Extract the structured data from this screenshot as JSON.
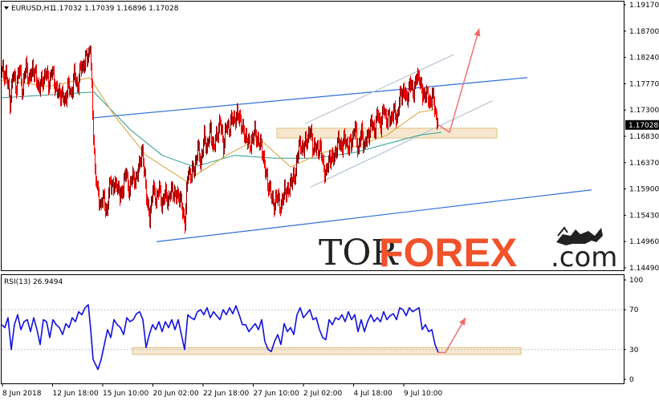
{
  "chart_data": [
    {
      "type": "candlestick",
      "header": {
        "symbol": "EURUSD,H1",
        "ohlc": "1.17032 1.17039 1.16896 1.17028"
      },
      "last_price_label": "1.17028",
      "ylim": [
        1.1449,
        1.1917
      ],
      "y_ticks": [
        "1.19170",
        "1.18700",
        "1.18240",
        "1.17770",
        "1.17300",
        "1.16830",
        "1.16370",
        "1.15900",
        "1.15430",
        "1.14960",
        "1.14490"
      ],
      "x_tick_labels": [
        "8 Jun 2018",
        "12 Jun 18:00",
        "15 Jun 10:00",
        "20 Jun 02:00",
        "22 Jun 18:00",
        "27 Jun 10:00",
        "2 Jul 02:00",
        "4 Jul 18:00",
        "9 Jul 10:00"
      ],
      "price_path": [
        [
          0,
          1.1795
        ],
        [
          5,
          1.1792
        ],
        [
          10,
          1.1745
        ],
        [
          14,
          1.179
        ],
        [
          18,
          1.177
        ],
        [
          22,
          1.18
        ],
        [
          26,
          1.176
        ],
        [
          30,
          1.181
        ],
        [
          34,
          1.1775
        ],
        [
          38,
          1.1805
        ],
        [
          42,
          1.1785
        ],
        [
          46,
          1.177
        ],
        [
          50,
          1.1775
        ],
        [
          54,
          1.1795
        ],
        [
          58,
          1.1775
        ],
        [
          62,
          1.1795
        ],
        [
          66,
          1.1775
        ],
        [
          70,
          1.1755
        ],
        [
          74,
          1.176
        ],
        [
          78,
          1.174
        ],
        [
          82,
          1.1772
        ],
        [
          86,
          1.1755
        ],
        [
          90,
          1.179
        ],
        [
          94,
          1.177
        ],
        [
          98,
          1.18
        ],
        [
          102,
          1.181
        ],
        [
          106,
          1.1818
        ],
        [
          110,
          1.184
        ],
        [
          113,
          1.172
        ],
        [
          116,
          1.1625
        ],
        [
          119,
          1.1585
        ],
        [
          123,
          1.1565
        ],
        [
          127,
          1.1575
        ],
        [
          131,
          1.155
        ],
        [
          135,
          1.161
        ],
        [
          139,
          1.159
        ],
        [
          143,
          1.1605
        ],
        [
          147,
          1.1575
        ],
        [
          151,
          1.1598
        ],
        [
          155,
          1.162
        ],
        [
          159,
          1.1585
        ],
        [
          163,
          1.162
        ],
        [
          167,
          1.16
        ],
        [
          171,
          1.164
        ],
        [
          175,
          1.165
        ],
        [
          178,
          1.162
        ],
        [
          181,
          1.156
        ],
        [
          184,
          1.1545
        ],
        [
          188,
          1.159
        ],
        [
          192,
          1.1575
        ],
        [
          196,
          1.159
        ],
        [
          200,
          1.1565
        ],
        [
          204,
          1.1585
        ],
        [
          208,
          1.157
        ],
        [
          212,
          1.1595
        ],
        [
          216,
          1.1575
        ],
        [
          220,
          1.1585
        ],
        [
          224,
          1.156
        ],
        [
          228,
          1.1535
        ],
        [
          232,
          1.1625
        ],
        [
          236,
          1.1615
        ],
        [
          240,
          1.163
        ],
        [
          244,
          1.166
        ],
        [
          248,
          1.164
        ],
        [
          252,
          1.168
        ],
        [
          256,
          1.1665
        ],
        [
          260,
          1.1695
        ],
        [
          264,
          1.166
        ],
        [
          268,
          1.169
        ],
        [
          272,
          1.1705
        ],
        [
          276,
          1.167
        ],
        [
          280,
          1.17
        ],
        [
          284,
          1.17
        ],
        [
          288,
          1.1715
        ],
        [
          292,
          1.1715
        ],
        [
          296,
          1.172
        ],
        [
          300,
          1.169
        ],
        [
          304,
          1.1685
        ],
        [
          308,
          1.1665
        ],
        [
          312,
          1.168
        ],
        [
          316,
          1.169
        ],
        [
          320,
          1.167
        ],
        [
          324,
          1.1665
        ],
        [
          328,
          1.162
        ],
        [
          332,
          1.16
        ],
        [
          336,
          1.1575
        ],
        [
          340,
          1.1565
        ],
        [
          344,
          1.158
        ],
        [
          348,
          1.1555
        ],
        [
          352,
          1.1595
        ],
        [
          356,
          1.158
        ],
        [
          360,
          1.161
        ],
        [
          364,
          1.1605
        ],
        [
          368,
          1.165
        ],
        [
          372,
          1.167
        ],
        [
          376,
          1.166
        ],
        [
          380,
          1.168
        ],
        [
          384,
          1.169
        ],
        [
          388,
          1.1665
        ],
        [
          392,
          1.166
        ],
        [
          396,
          1.1665
        ],
        [
          400,
          1.1635
        ],
        [
          404,
          1.1615
        ],
        [
          408,
          1.165
        ],
        [
          412,
          1.164
        ],
        [
          416,
          1.166
        ],
        [
          420,
          1.1675
        ],
        [
          424,
          1.1665
        ],
        [
          428,
          1.168
        ],
        [
          432,
          1.166
        ],
        [
          436,
          1.168
        ],
        [
          440,
          1.1695
        ],
        [
          444,
          1.166
        ],
        [
          448,
          1.169
        ],
        [
          452,
          1.1665
        ],
        [
          456,
          1.1685
        ],
        [
          460,
          1.1705
        ],
        [
          464,
          1.1695
        ],
        [
          468,
          1.172
        ],
        [
          472,
          1.1705
        ],
        [
          476,
          1.173
        ],
        [
          480,
          1.171
        ],
        [
          484,
          1.1715
        ],
        [
          488,
          1.1725
        ],
        [
          492,
          1.1715
        ],
        [
          496,
          1.175
        ],
        [
          500,
          1.1765
        ],
        [
          504,
          1.1745
        ],
        [
          508,
          1.1775
        ],
        [
          512,
          1.176
        ],
        [
          516,
          1.178
        ],
        [
          520,
          1.179
        ],
        [
          524,
          1.175
        ],
        [
          528,
          1.1762
        ],
        [
          532,
          1.174
        ],
        [
          536,
          1.1755
        ],
        [
          540,
          1.1725
        ],
        [
          544,
          1.1703
        ]
      ],
      "ma_orange": [
        [
          0,
          1.178
        ],
        [
          60,
          1.177
        ],
        [
          110,
          1.1785
        ],
        [
          140,
          1.172
        ],
        [
          180,
          1.165
        ],
        [
          230,
          1.1605
        ],
        [
          280,
          1.165
        ],
        [
          320,
          1.168
        ],
        [
          360,
          1.163
        ],
        [
          400,
          1.1655
        ],
        [
          440,
          1.1665
        ],
        [
          480,
          1.1685
        ],
        [
          520,
          1.1725
        ],
        [
          544,
          1.173
        ]
      ],
      "ma_teal": [
        [
          0,
          1.175
        ],
        [
          60,
          1.1755
        ],
        [
          115,
          1.176
        ],
        [
          160,
          1.1695
        ],
        [
          200,
          1.165
        ],
        [
          240,
          1.163
        ],
        [
          290,
          1.165
        ],
        [
          340,
          1.1645
        ],
        [
          390,
          1.1645
        ],
        [
          440,
          1.1655
        ],
        [
          480,
          1.167
        ],
        [
          520,
          1.1685
        ],
        [
          548,
          1.169
        ]
      ],
      "trend_upper": [
        [
          113,
          1.1715
        ],
        [
          655,
          1.1785
        ]
      ],
      "trend_lower": [
        [
          193,
          1.15
        ],
        [
          735,
          1.159
        ]
      ],
      "channel_upper": [
        [
          378,
          1.1705
        ],
        [
          563,
          1.1825
        ]
      ],
      "channel_lower": [
        [
          385,
          1.1595
        ],
        [
          612,
          1.1745
        ]
      ],
      "support_zone": {
        "x": [
          343,
          617
        ],
        "y": [
          1.168,
          1.1697
        ]
      },
      "forecast_arrow": [
        [
          544,
          1.1703
        ],
        [
          558,
          1.169
        ],
        [
          595,
          1.187
        ]
      ]
    },
    {
      "type": "line",
      "header": "RSI(13) 26.9494",
      "ylim": [
        0,
        100
      ],
      "y_ticks": [
        "100",
        "70",
        "30",
        "0"
      ],
      "levels": [
        70,
        30
      ],
      "rsi_path": [
        [
          0,
          55
        ],
        [
          4,
          52
        ],
        [
          8,
          62
        ],
        [
          12,
          30
        ],
        [
          16,
          55
        ],
        [
          20,
          65
        ],
        [
          24,
          50
        ],
        [
          28,
          58
        ],
        [
          32,
          60
        ],
        [
          36,
          48
        ],
        [
          40,
          62
        ],
        [
          44,
          50
        ],
        [
          48,
          35
        ],
        [
          52,
          60
        ],
        [
          56,
          58
        ],
        [
          60,
          42
        ],
        [
          64,
          60
        ],
        [
          68,
          55
        ],
        [
          72,
          52
        ],
        [
          76,
          45
        ],
        [
          80,
          56
        ],
        [
          84,
          52
        ],
        [
          88,
          62
        ],
        [
          92,
          58
        ],
        [
          96,
          68
        ],
        [
          100,
          65
        ],
        [
          104,
          72
        ],
        [
          108,
          75
        ],
        [
          111,
          50
        ],
        [
          114,
          20
        ],
        [
          117,
          15
        ],
        [
          120,
          10
        ],
        [
          124,
          20
        ],
        [
          128,
          35
        ],
        [
          132,
          50
        ],
        [
          136,
          42
        ],
        [
          140,
          60
        ],
        [
          144,
          55
        ],
        [
          148,
          52
        ],
        [
          152,
          45
        ],
        [
          156,
          62
        ],
        [
          160,
          58
        ],
        [
          164,
          60
        ],
        [
          168,
          66
        ],
        [
          172,
          68
        ],
        [
          176,
          60
        ],
        [
          180,
          32
        ],
        [
          184,
          45
        ],
        [
          188,
          55
        ],
        [
          192,
          50
        ],
        [
          196,
          58
        ],
        [
          200,
          48
        ],
        [
          204,
          58
        ],
        [
          208,
          52
        ],
        [
          212,
          60
        ],
        [
          216,
          50
        ],
        [
          220,
          60
        ],
        [
          224,
          45
        ],
        [
          228,
          30
        ],
        [
          232,
          65
        ],
        [
          236,
          62
        ],
        [
          240,
          60
        ],
        [
          244,
          68
        ],
        [
          248,
          70
        ],
        [
          252,
          65
        ],
        [
          256,
          72
        ],
        [
          260,
          62
        ],
        [
          264,
          68
        ],
        [
          268,
          64
        ],
        [
          272,
          60
        ],
        [
          276,
          70
        ],
        [
          280,
          65
        ],
        [
          284,
          72
        ],
        [
          288,
          66
        ],
        [
          292,
          74
        ],
        [
          296,
          65
        ],
        [
          300,
          55
        ],
        [
          304,
          55
        ],
        [
          308,
          48
        ],
        [
          312,
          52
        ],
        [
          316,
          56
        ],
        [
          320,
          50
        ],
        [
          324,
          60
        ],
        [
          328,
          38
        ],
        [
          332,
          30
        ],
        [
          336,
          28
        ],
        [
          340,
          38
        ],
        [
          344,
          45
        ],
        [
          348,
          35
        ],
        [
          352,
          56
        ],
        [
          356,
          48
        ],
        [
          360,
          52
        ],
        [
          364,
          45
        ],
        [
          368,
          65
        ],
        [
          372,
          72
        ],
        [
          376,
          62
        ],
        [
          380,
          66
        ],
        [
          384,
          70
        ],
        [
          388,
          60
        ],
        [
          392,
          62
        ],
        [
          396,
          50
        ],
        [
          400,
          42
        ],
        [
          404,
          40
        ],
        [
          408,
          60
        ],
        [
          412,
          55
        ],
        [
          416,
          62
        ],
        [
          420,
          60
        ],
        [
          424,
          65
        ],
        [
          428,
          58
        ],
        [
          432,
          68
        ],
        [
          436,
          60
        ],
        [
          440,
          65
        ],
        [
          444,
          48
        ],
        [
          448,
          60
        ],
        [
          452,
          48
        ],
        [
          456,
          58
        ],
        [
          460,
          65
        ],
        [
          464,
          58
        ],
        [
          468,
          62
        ],
        [
          472,
          58
        ],
        [
          476,
          68
        ],
        [
          480,
          60
        ],
        [
          484,
          64
        ],
        [
          488,
          66
        ],
        [
          492,
          60
        ],
        [
          496,
          72
        ],
        [
          500,
          70
        ],
        [
          504,
          64
        ],
        [
          508,
          72
        ],
        [
          512,
          68
        ],
        [
          516,
          70
        ],
        [
          520,
          72
        ],
        [
          524,
          50
        ],
        [
          528,
          55
        ],
        [
          532,
          48
        ],
        [
          536,
          50
        ],
        [
          540,
          35
        ],
        [
          544,
          27
        ]
      ],
      "support_zone": {
        "x": [
          163,
          647
        ],
        "y": [
          25,
          32
        ]
      },
      "forecast_arrow": [
        [
          544,
          27
        ],
        [
          553,
          27
        ],
        [
          578,
          62
        ]
      ]
    }
  ],
  "watermark": {
    "part1": "TOR",
    "part2": "FOREX",
    "part3": ".com"
  },
  "colors": {
    "bull": "#8b0000",
    "bear": "#ff0000",
    "ma_orange": "#d8a032",
    "ma_teal": "#2a9d8f",
    "trend": "#2f6fd6",
    "channel": "#b8c4d2",
    "zone_fill": "#f5e7cf",
    "zone_stroke": "#e0c080",
    "arrow": "#f06a6a",
    "rsi": "#1010e0",
    "last_label_bg": "#000000"
  }
}
